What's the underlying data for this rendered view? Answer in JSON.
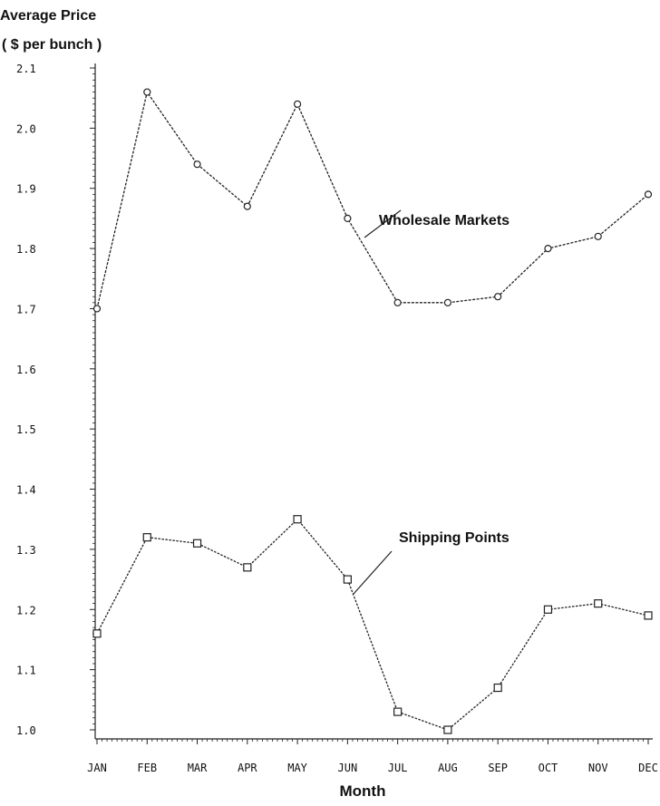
{
  "chart_data": {
    "type": "line",
    "title": "",
    "ylabel_line1": "Average Price",
    "ylabel_line2": "( $ per bunch )",
    "xlabel": "Month",
    "categories": [
      "JAN",
      "FEB",
      "MAR",
      "APR",
      "MAY",
      "JUN",
      "JUL",
      "AUG",
      "SEP",
      "OCT",
      "NOV",
      "DEC"
    ],
    "y_ticks": [
      {
        "value": 1.0,
        "label": "1.0"
      },
      {
        "value": 1.1,
        "label": "1.1"
      },
      {
        "value": 1.2,
        "label": "1.2"
      },
      {
        "value": 1.3,
        "label": "1.3"
      },
      {
        "value": 1.4,
        "label": "1.4"
      },
      {
        "value": 1.5,
        "label": "1.5"
      },
      {
        "value": 1.6,
        "label": "1.6"
      },
      {
        "value": 1.7,
        "label": "1.7"
      },
      {
        "value": 1.8,
        "label": "1.8"
      },
      {
        "value": 1.9,
        "label": "1.9"
      },
      {
        "value": 2.0,
        "label": "2.0"
      },
      {
        "value": 2.1,
        "label": "2.1"
      }
    ],
    "ylim": [
      1.0,
      2.1
    ],
    "grid": false,
    "series": [
      {
        "name": "Wholesale Markets",
        "marker": "circle",
        "values": [
          1.7,
          2.06,
          1.94,
          1.87,
          2.04,
          1.85,
          1.71,
          1.71,
          1.72,
          1.8,
          1.82,
          1.89
        ]
      },
      {
        "name": "Shipping Points",
        "marker": "square",
        "values": [
          1.16,
          1.32,
          1.31,
          1.27,
          1.35,
          1.25,
          1.03,
          1.0,
          1.07,
          1.2,
          1.21,
          1.19
        ]
      }
    ],
    "annotations": [
      {
        "text": "Wholesale Markets",
        "series": 0
      },
      {
        "text": "Shipping Points",
        "series": 1
      }
    ],
    "colors": {
      "line": "#222222",
      "text": "#111111"
    }
  }
}
